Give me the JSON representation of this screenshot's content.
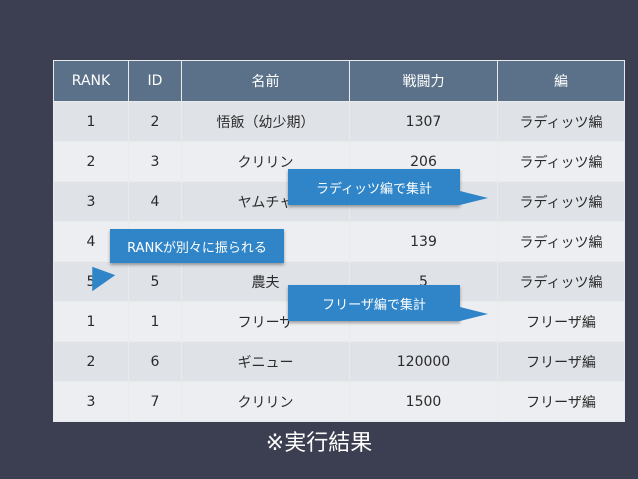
{
  "table": {
    "headers": [
      "RANK",
      "ID",
      "名前",
      "戦闘力",
      "編"
    ],
    "rows": [
      [
        "1",
        "2",
        "悟飯（幼少期）",
        "1307",
        "ラディッツ編"
      ],
      [
        "2",
        "3",
        "クリリン",
        "206",
        "ラディッツ編"
      ],
      [
        "3",
        "4",
        "ヤムチャ",
        "",
        "ラディッツ編"
      ],
      [
        "4",
        "",
        "",
        "139",
        "ラディッツ編"
      ],
      [
        "5",
        "5",
        "農夫",
        "5",
        "ラディッツ編"
      ],
      [
        "1",
        "1",
        "フリーザ",
        "",
        "フリーザ編"
      ],
      [
        "2",
        "6",
        "ギニュー",
        "120000",
        "フリーザ編"
      ],
      [
        "3",
        "7",
        "クリリン",
        "1500",
        "フリーザ編"
      ]
    ]
  },
  "callouts": {
    "raditz": "ラディッツ編で集計",
    "rank": "RANKが別々に振られる",
    "frieza": "フリーザ編で集計"
  },
  "footnote": "※実行結果",
  "colors": {
    "background": "#3c3e51",
    "header": "#5b7189",
    "callout": "#2f85c8"
  }
}
